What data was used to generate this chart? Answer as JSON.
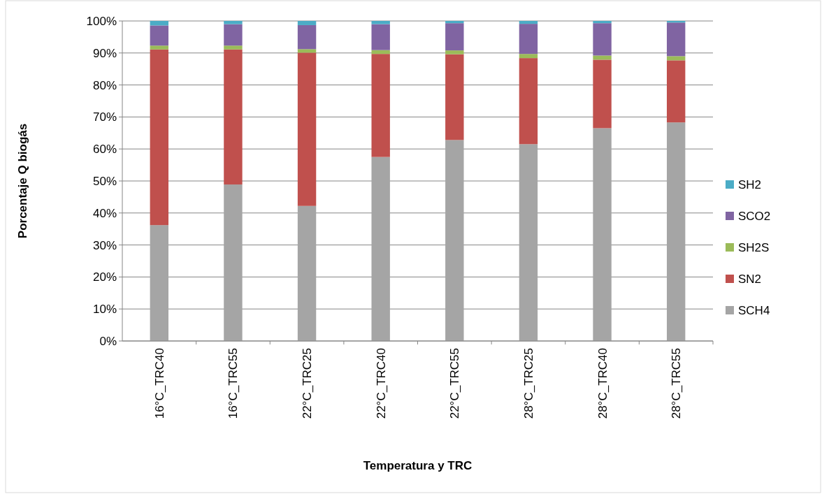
{
  "chart_data": {
    "type": "bar",
    "stacked": true,
    "xlabel": "Temperatura y TRC",
    "ylabel": "Porcentaje Q biogás",
    "categories": [
      "16°C_TRC40",
      "16°C_TRC55",
      "22°C_TRC25",
      "22°C_TRC40",
      "22°C_TRC55",
      "28°C_TRC25",
      "28°C_TRC40",
      "28°C_TRC55"
    ],
    "series": [
      {
        "name": "SCH4",
        "color": "#a5a5a5",
        "values": [
          36.2,
          48.9,
          42.2,
          57.5,
          62.8,
          61.5,
          66.5,
          68.3
        ]
      },
      {
        "name": "SN2",
        "color": "#c0504d",
        "values": [
          54.9,
          42.2,
          47.9,
          32.2,
          26.8,
          26.9,
          21.4,
          19.4
        ]
      },
      {
        "name": "SH2S",
        "color": "#9bbb59",
        "values": [
          1.2,
          1.2,
          1.1,
          1.2,
          1.2,
          1.3,
          1.3,
          1.3
        ]
      },
      {
        "name": "SCO2",
        "color": "#8064a2",
        "values": [
          6.3,
          6.7,
          7.5,
          8.1,
          8.5,
          9.4,
          10.1,
          10.5
        ]
      },
      {
        "name": "SH2",
        "color": "#4bacc6",
        "values": [
          1.4,
          1.0,
          1.3,
          1.0,
          0.7,
          0.9,
          0.7,
          0.5
        ]
      }
    ],
    "ylim": [
      0,
      100
    ],
    "yticks": [
      {
        "value": 0,
        "label": "0%"
      },
      {
        "value": 10,
        "label": "10%"
      },
      {
        "value": 20,
        "label": "20%"
      },
      {
        "value": 30,
        "label": "30%"
      },
      {
        "value": 40,
        "label": "40%"
      },
      {
        "value": 50,
        "label": "50%"
      },
      {
        "value": 60,
        "label": "60%"
      },
      {
        "value": 70,
        "label": "70%"
      },
      {
        "value": 80,
        "label": "80%"
      },
      {
        "value": 90,
        "label": "90%"
      },
      {
        "value": 100,
        "label": "100%"
      }
    ],
    "grid": "y",
    "legend": "right"
  }
}
